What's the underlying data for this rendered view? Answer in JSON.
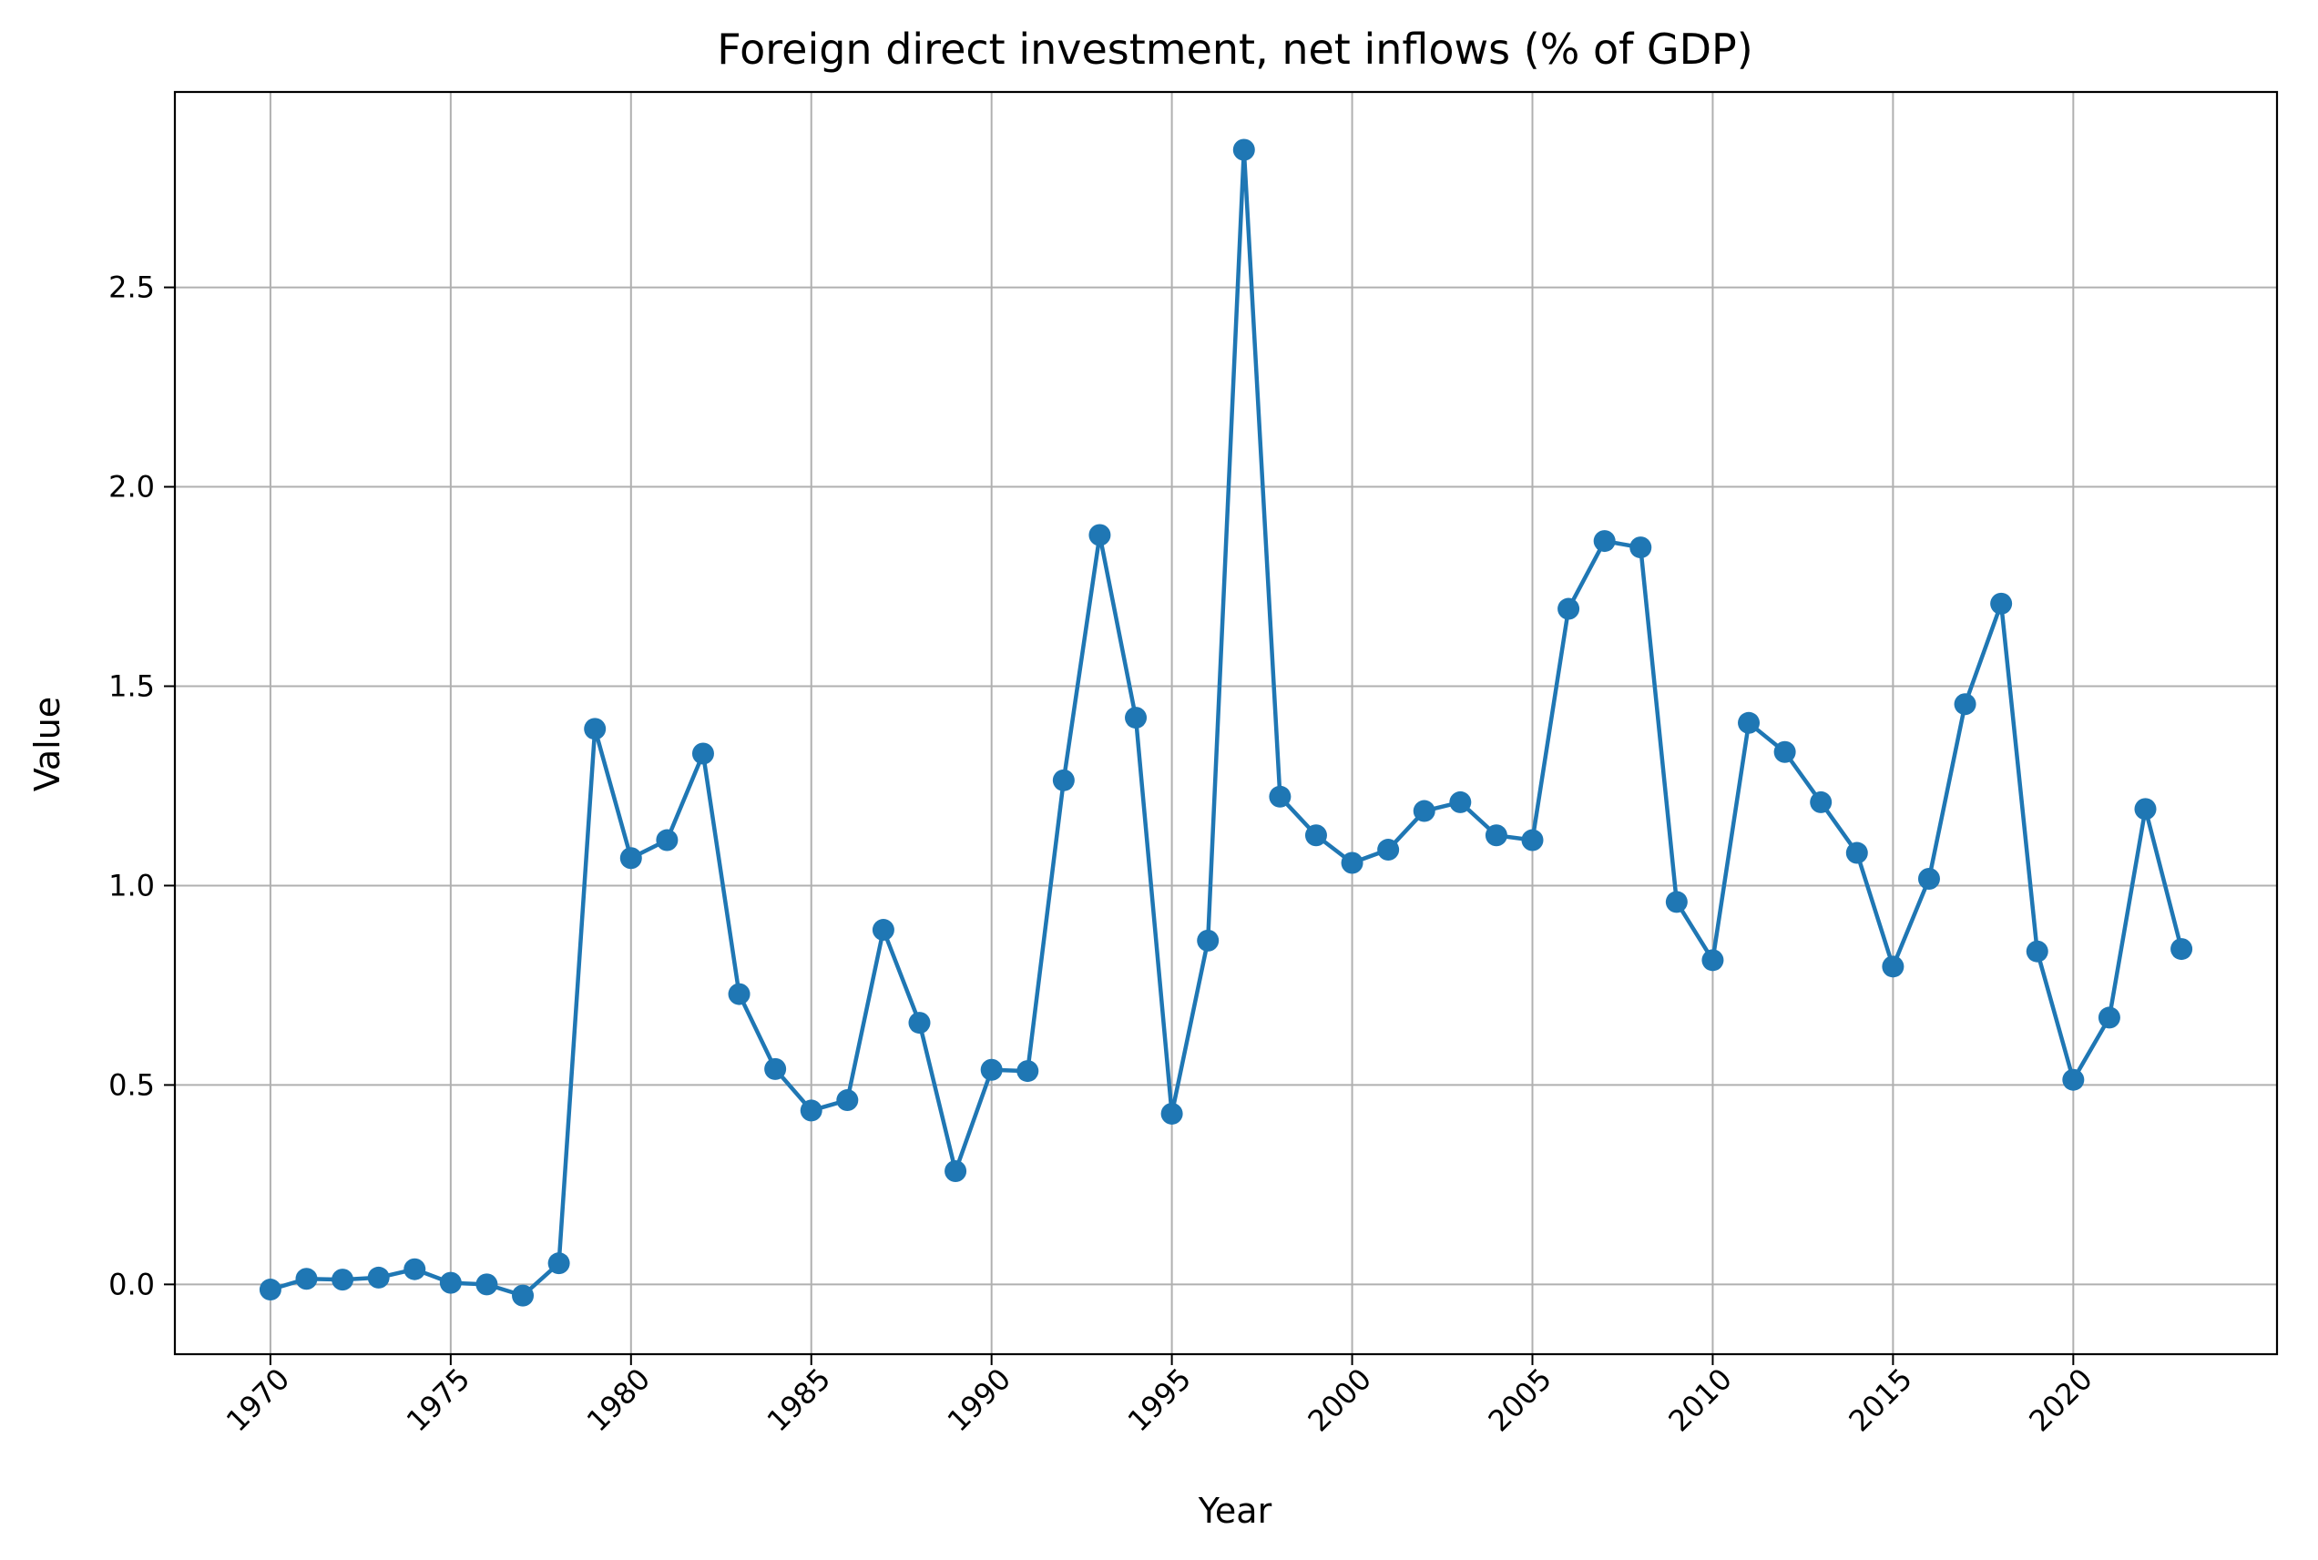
{
  "chart_data": {
    "type": "line",
    "title": "Foreign direct investment, net inflows (% of GDP)",
    "xlabel": "Year",
    "ylabel": "Value",
    "xlim": [
      1967.35,
      2025.65
    ],
    "ylim": [
      -0.175,
      2.99
    ],
    "xticks": [
      1970,
      1975,
      1980,
      1985,
      1990,
      1995,
      2000,
      2005,
      2010,
      2015,
      2020
    ],
    "yticks": [
      0.0,
      0.5,
      1.0,
      1.5,
      2.0,
      2.5
    ],
    "ytick_labels": [
      "0.0",
      "0.5",
      "1.0",
      "1.5",
      "2.0",
      "2.5"
    ],
    "grid": true,
    "color": "#1f77b4",
    "marker": "circle",
    "series": [
      {
        "x": [
          1970,
          1971,
          1972,
          1973,
          1974,
          1975,
          1976,
          1977,
          1978,
          1979,
          1980,
          1981,
          1982,
          1983,
          1984,
          1985,
          1986,
          1987,
          1988,
          1989,
          1990,
          1991,
          1992,
          1993,
          1994,
          1995,
          1996,
          1997,
          1998,
          1999,
          2000,
          2001,
          2002,
          2003,
          2004,
          2005,
          2006,
          2007,
          2008,
          2009,
          2010,
          2011,
          2012,
          2013,
          2014,
          2015,
          2016,
          2017,
          2018,
          2019,
          2020,
          2021,
          2022,
          2023
        ],
        "values": [
          -0.013,
          0.014,
          0.012,
          0.017,
          0.038,
          0.004,
          0.0,
          -0.028,
          0.053,
          1.393,
          1.069,
          1.114,
          1.331,
          0.728,
          0.54,
          0.436,
          0.462,
          0.889,
          0.656,
          0.284,
          0.538,
          0.535,
          1.264,
          1.879,
          1.421,
          0.428,
          0.862,
          2.845,
          1.223,
          1.126,
          1.057,
          1.09,
          1.187,
          1.209,
          1.126,
          1.114,
          1.694,
          1.864,
          1.848,
          0.959,
          0.813,
          1.408,
          1.335,
          1.209,
          1.082,
          0.797,
          1.017,
          1.455,
          1.707,
          0.835,
          0.513,
          0.669,
          1.192,
          0.841
        ]
      }
    ]
  }
}
